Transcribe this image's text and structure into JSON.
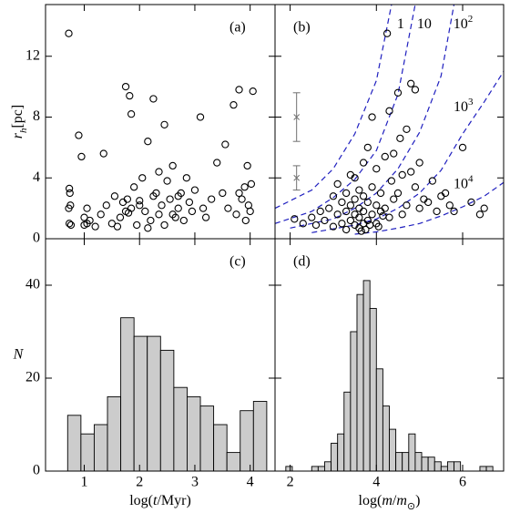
{
  "chart_data": [
    {
      "type": "scatter",
      "panel_label": "(a)",
      "y_label": [
        {
          "text": "r",
          "italic": true
        },
        {
          "text": "h",
          "italic": true,
          "shift": "sub"
        },
        {
          "text": "[pc]"
        }
      ],
      "xlim": [
        0.3,
        4.45
      ],
      "ylim": [
        0,
        15.4
      ],
      "xticks": [
        1,
        2,
        3,
        4
      ],
      "yticks": [
        0,
        4,
        8,
        12
      ],
      "x_tick_labels": false,
      "y_tick_labels": true,
      "color": "#000000",
      "x": [
        0.72,
        0.73,
        0.74,
        0.75,
        0.73,
        0.76,
        0.72,
        0.9,
        0.95,
        1.0,
        1.05,
        1.1,
        1.2,
        1.3,
        1.35,
        1.4,
        1.5,
        1.55,
        1.6,
        1.65,
        1.7,
        1.75,
        1.78,
        1.8,
        1.82,
        1.85,
        1.9,
        1.95,
        2.0,
        2.05,
        2.1,
        2.15,
        2.2,
        2.25,
        2.3,
        2.35,
        2.4,
        2.45,
        2.5,
        2.55,
        2.6,
        2.65,
        2.7,
        2.75,
        2.8,
        2.85,
        2.9,
        2.95,
        3.0,
        3.1,
        3.2,
        3.3,
        3.4,
        3.5,
        3.55,
        3.6,
        3.7,
        3.75,
        3.8,
        3.85,
        3.9,
        3.92,
        3.95,
        3.97,
        4.0,
        4.02,
        4.05,
        1.05,
        1.75,
        2.25,
        2.45,
        3.8,
        1.0,
        2.0,
        2.6,
        3.15,
        1.85,
        2.15,
        2.35,
        2.7
      ],
      "values": [
        13.5,
        3.3,
        3.0,
        2.2,
        1.0,
        0.9,
        2.0,
        6.8,
        5.4,
        1.4,
        2.0,
        1.2,
        0.8,
        1.6,
        5.6,
        2.2,
        1.0,
        2.8,
        0.8,
        1.4,
        2.4,
        10.0,
        2.6,
        1.7,
        9.4,
        2.0,
        3.4,
        0.9,
        2.5,
        4.0,
        1.8,
        6.4,
        1.2,
        9.2,
        3.0,
        1.6,
        2.2,
        0.9,
        3.8,
        2.6,
        4.8,
        1.4,
        2.0,
        3.0,
        1.2,
        4.0,
        2.4,
        1.8,
        3.2,
        8.0,
        1.4,
        2.6,
        5.0,
        3.0,
        6.2,
        2.0,
        8.8,
        1.6,
        9.8,
        2.6,
        3.4,
        1.2,
        4.8,
        2.2,
        1.8,
        3.6,
        9.7,
        1.0,
        1.8,
        2.8,
        7.5,
        3.0,
        0.9,
        2.2,
        1.6,
        2.0,
        8.2,
        0.7,
        4.4,
        2.8
      ]
    },
    {
      "type": "scatter",
      "panel_label": "(b)",
      "xlim": [
        1.65,
        6.95
      ],
      "ylim": [
        0,
        15.4
      ],
      "xticks": [
        2,
        4,
        6
      ],
      "yticks": [
        0,
        4,
        8,
        12
      ],
      "x_tick_labels": false,
      "y_tick_labels": false,
      "color": "#000000",
      "x": [
        2.1,
        2.3,
        2.5,
        2.6,
        2.7,
        2.8,
        2.9,
        3.0,
        3.0,
        3.1,
        3.1,
        3.2,
        3.2,
        3.3,
        3.3,
        3.3,
        3.4,
        3.4,
        3.4,
        3.5,
        3.5,
        3.5,
        3.5,
        3.6,
        3.6,
        3.6,
        3.6,
        3.7,
        3.7,
        3.7,
        3.7,
        3.8,
        3.8,
        3.8,
        3.9,
        3.9,
        3.9,
        4.0,
        4.0,
        4.0,
        4.1,
        4.1,
        4.2,
        4.2,
        4.3,
        4.3,
        4.4,
        4.4,
        4.5,
        4.5,
        4.6,
        4.6,
        4.7,
        4.7,
        4.8,
        4.9,
        4.9,
        5.0,
        5.0,
        5.1,
        5.2,
        5.3,
        5.4,
        5.5,
        5.6,
        5.7,
        5.8,
        6.0,
        6.2,
        6.4,
        6.5,
        3.65,
        3.75,
        4.25,
        4.05,
        3.85,
        4.15,
        4.35,
        4.55,
        4.8
      ],
      "values": [
        1.3,
        1.0,
        1.4,
        0.9,
        1.8,
        1.2,
        2.0,
        0.8,
        2.8,
        1.6,
        3.6,
        1.0,
        2.4,
        0.6,
        1.8,
        3.0,
        1.2,
        2.2,
        4.2,
        0.9,
        1.6,
        2.6,
        4.0,
        0.7,
        1.4,
        2.0,
        3.2,
        1.0,
        1.8,
        2.8,
        5.0,
        1.2,
        2.4,
        6.0,
        1.6,
        3.4,
        8.0,
        1.0,
        2.2,
        4.6,
        1.8,
        3.0,
        2.0,
        5.4,
        1.4,
        8.4,
        2.6,
        5.6,
        3.0,
        9.6,
        1.6,
        4.2,
        2.2,
        7.2,
        10.2,
        3.4,
        9.8,
        2.0,
        5.0,
        2.6,
        2.4,
        3.8,
        1.8,
        2.8,
        3.0,
        2.2,
        1.8,
        6.0,
        2.4,
        1.6,
        2.0,
        0.5,
        0.6,
        13.5,
        0.8,
        0.9,
        1.5,
        3.8,
        6.6,
        4.4
      ],
      "curves_color": "#1f1fbf",
      "curves": [
        {
          "label": [
            {
              "text": "1"
            }
          ],
          "x": [
            1.65,
            2.5,
            3.0,
            3.5,
            4.0,
            4.35
          ],
          "values": [
            2.0,
            3.2,
            4.6,
            6.9,
            10.4,
            15.4
          ]
        },
        {
          "label": [
            {
              "text": "10"
            }
          ],
          "x": [
            1.65,
            2.5,
            3.0,
            3.5,
            4.0,
            4.5,
            4.9
          ],
          "values": [
            1.0,
            1.8,
            2.7,
            3.9,
            5.8,
            9.5,
            15.4
          ]
        },
        {
          "label": [
            {
              "text": "10"
            },
            {
              "text": "2",
              "shift": "super"
            }
          ],
          "x": [
            2.0,
            3.0,
            3.5,
            4.0,
            4.5,
            5.0,
            5.5,
            5.8
          ],
          "values": [
            0.7,
            1.3,
            2.0,
            3.0,
            4.6,
            7.0,
            10.7,
            15.4
          ]
        },
        {
          "label": [
            {
              "text": "10"
            },
            {
              "text": "3",
              "shift": "super"
            }
          ],
          "x": [
            2.5,
            3.5,
            4.0,
            4.5,
            5.0,
            5.5,
            6.0,
            6.5,
            6.95
          ],
          "values": [
            0.4,
            0.9,
            1.3,
            2.0,
            3.0,
            4.5,
            6.9,
            9.0,
            11.0
          ]
        },
        {
          "label": [
            {
              "text": "10"
            },
            {
              "text": "4",
              "shift": "super"
            }
          ],
          "x": [
            3.5,
            4.0,
            4.5,
            5.0,
            5.5,
            6.0,
            6.5,
            6.95
          ],
          "values": [
            0.3,
            0.45,
            0.7,
            1.0,
            1.5,
            2.1,
            2.8,
            3.7
          ]
        }
      ],
      "errorbars_color": "#707070",
      "errorbars": [
        {
          "x": 2.15,
          "value": 8.0,
          "error": 1.6
        },
        {
          "x": 2.15,
          "value": 4.0,
          "error": 0.8
        }
      ]
    },
    {
      "type": "histogram",
      "panel_label": "(c)",
      "y_label": [
        {
          "text": "N",
          "italic": true
        }
      ],
      "x_label": [
        {
          "text": "log("
        },
        {
          "text": "t",
          "italic": true
        },
        {
          "text": "/Myr)"
        }
      ],
      "xlim": [
        0.3,
        4.45
      ],
      "ylim": [
        0,
        50
      ],
      "xticks": [
        1,
        2,
        3,
        4
      ],
      "yticks": [
        0,
        20,
        40
      ],
      "x_tick_labels": true,
      "y_tick_labels": true,
      "color": "#cccccc",
      "bins": [
        0.7,
        0.94,
        1.18,
        1.42,
        1.66,
        1.9,
        2.14,
        2.38,
        2.62,
        2.86,
        3.1,
        3.34,
        3.58,
        3.82,
        4.06,
        4.3
      ],
      "values": [
        12,
        8,
        10,
        16,
        33,
        29,
        29,
        26,
        18,
        16,
        14,
        10,
        4,
        13,
        15
      ]
    },
    {
      "type": "histogram",
      "panel_label": "(d)",
      "x_label": [
        {
          "text": "log("
        },
        {
          "text": "m",
          "italic": true
        },
        {
          "text": "/"
        },
        {
          "text": "m",
          "italic": true
        },
        {
          "text": "⊙",
          "shift": "sub"
        },
        {
          "text": ")"
        }
      ],
      "xlim": [
        1.65,
        6.95
      ],
      "ylim": [
        0,
        50
      ],
      "xticks": [
        2,
        4,
        6
      ],
      "yticks": [
        0,
        20,
        40
      ],
      "x_tick_labels": true,
      "y_tick_labels": false,
      "color": "#cccccc",
      "bins": [
        1.9,
        2.05,
        2.2,
        2.35,
        2.5,
        2.65,
        2.8,
        2.95,
        3.1,
        3.25,
        3.4,
        3.55,
        3.7,
        3.85,
        4.0,
        4.15,
        4.3,
        4.45,
        4.6,
        4.75,
        4.9,
        5.05,
        5.2,
        5.35,
        5.5,
        5.65,
        5.8,
        5.95,
        6.1,
        6.25,
        6.4,
        6.55,
        6.7
      ],
      "values": [
        1,
        0,
        0,
        0,
        1,
        1,
        2,
        6,
        8,
        17,
        30,
        38,
        41,
        35,
        22,
        14,
        9,
        4,
        4,
        8,
        4,
        3,
        3,
        2,
        1,
        2,
        2,
        0,
        0,
        0,
        1,
        1
      ]
    }
  ]
}
